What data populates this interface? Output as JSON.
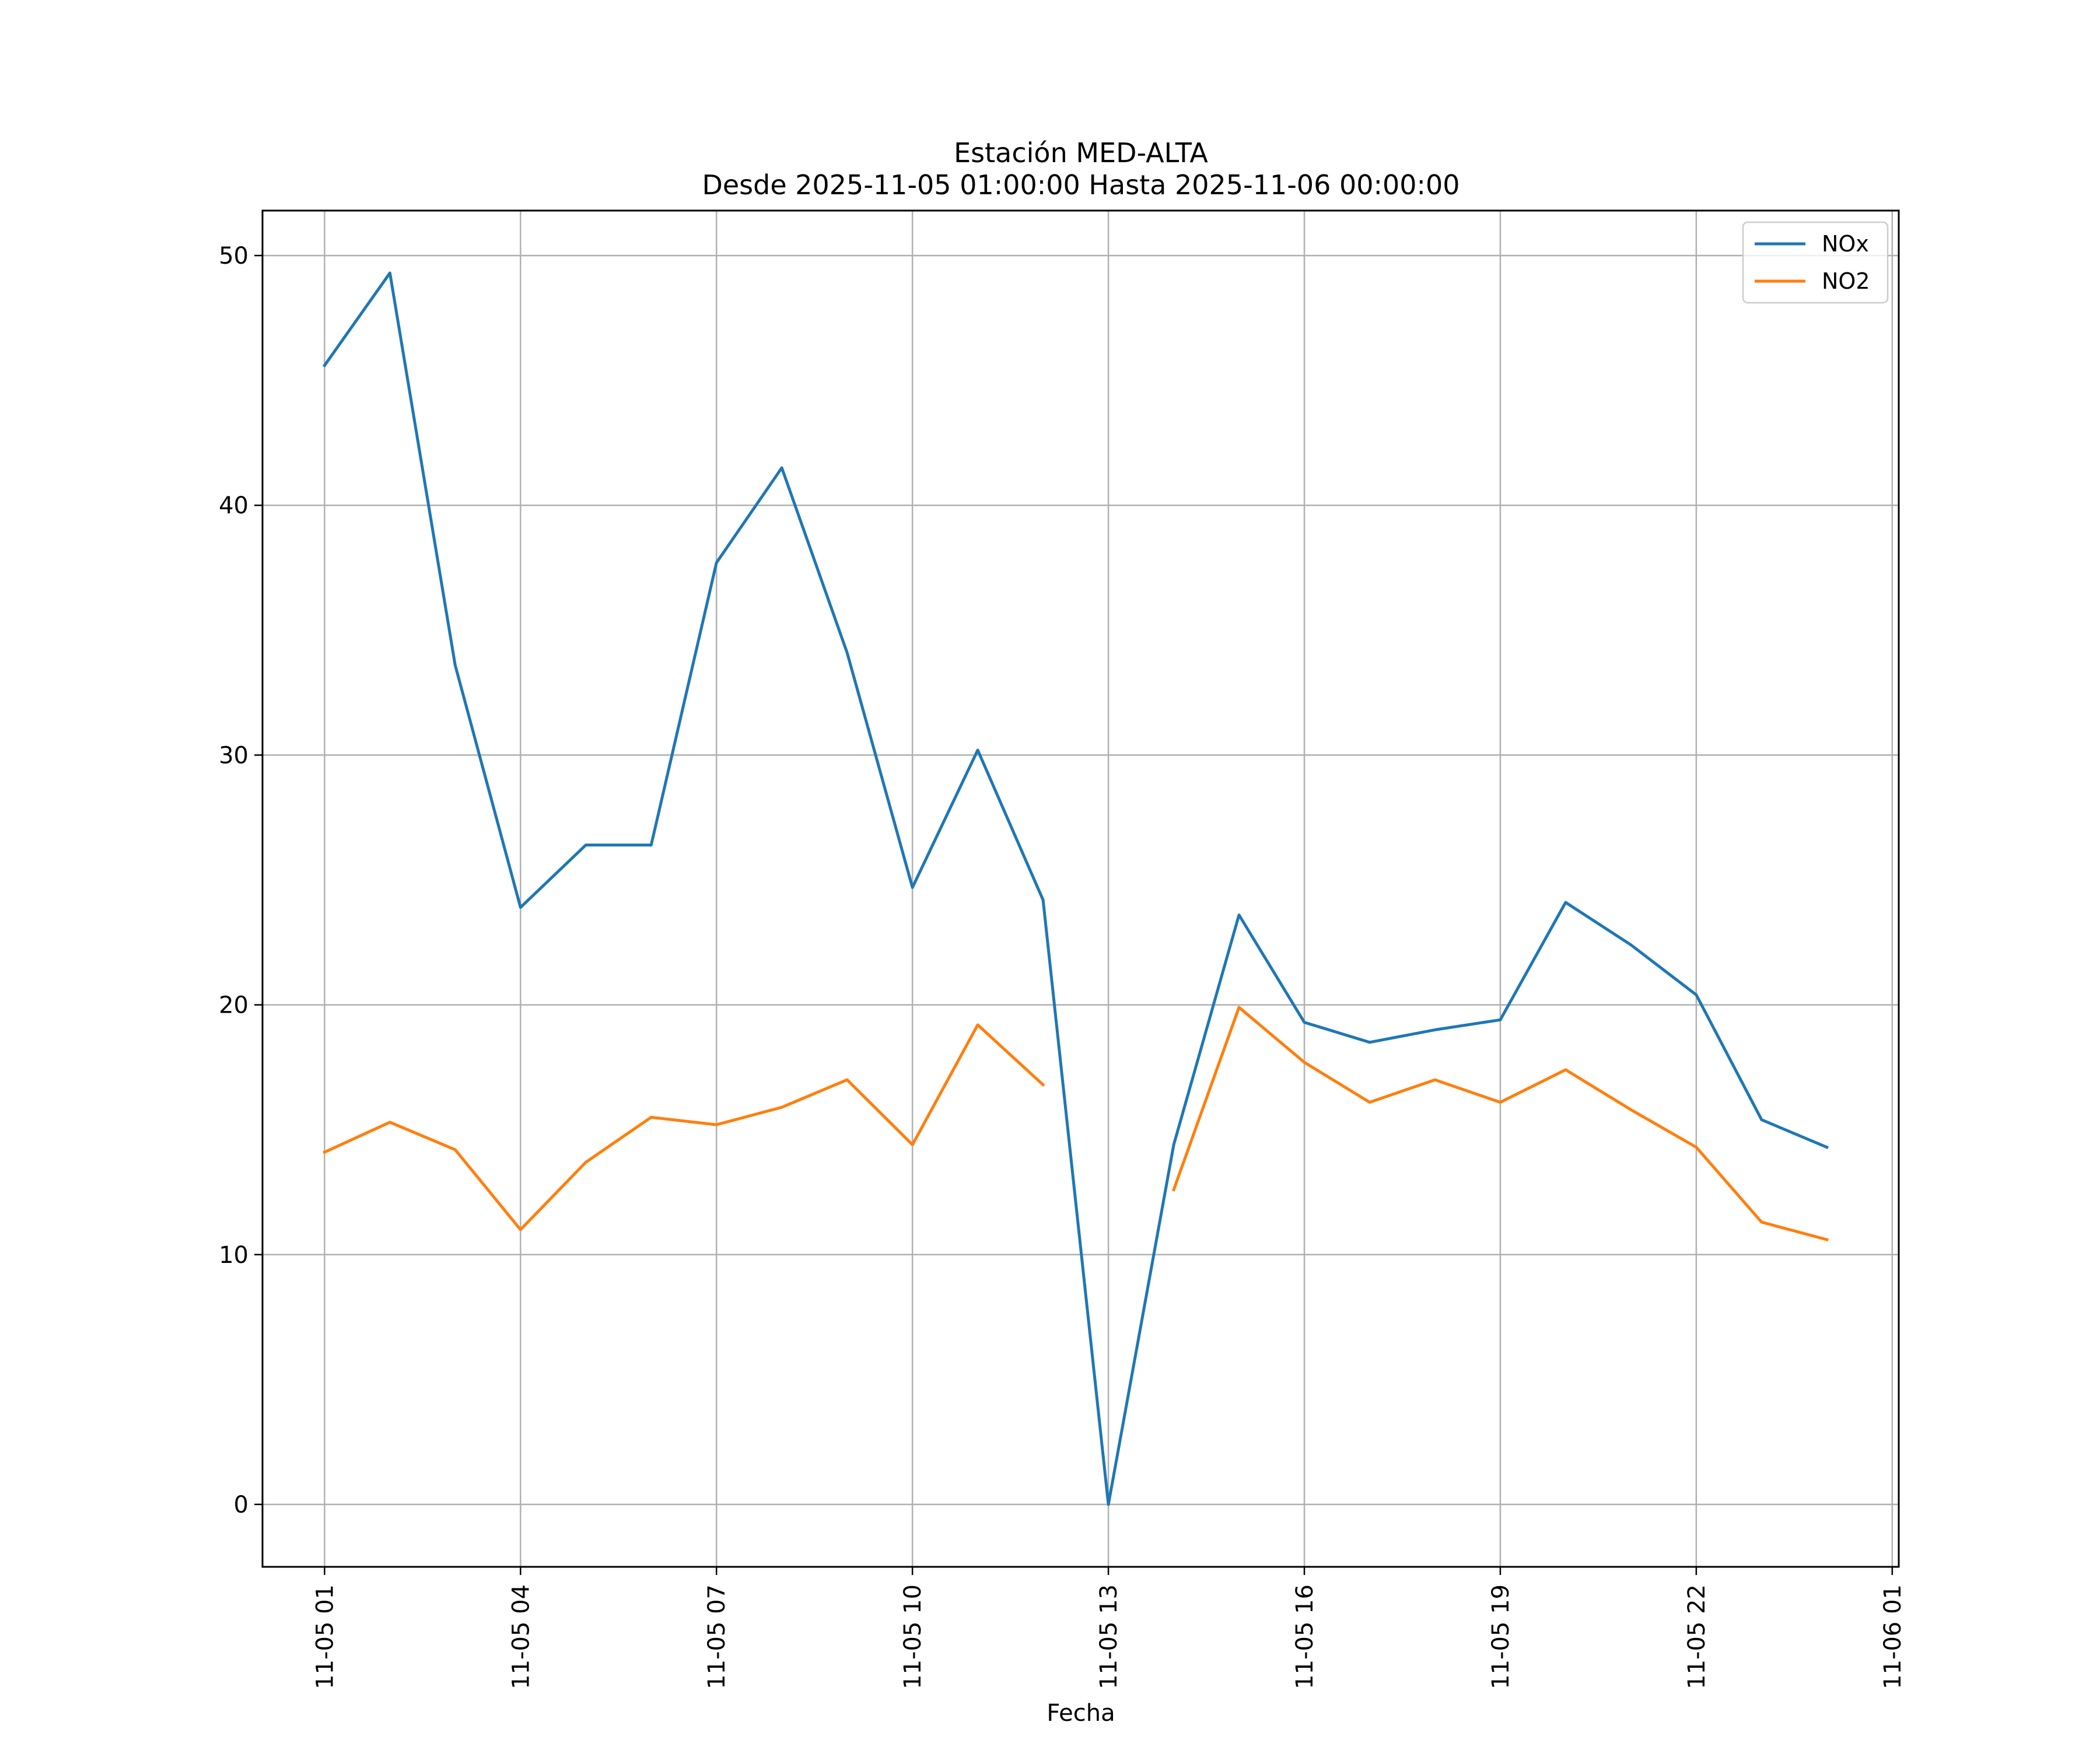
{
  "chart_data": {
    "type": "line",
    "title": "Estación MED-ALTA",
    "subtitle": "Desde 2025-11-05 01:00:00 Hasta 2025-11-06 00:00:00",
    "xlabel": "Fecha",
    "ylabel": "",
    "x": [
      "11-05 01",
      "11-05 02",
      "11-05 03",
      "11-05 04",
      "11-05 05",
      "11-05 06",
      "11-05 07",
      "11-05 08",
      "11-05 09",
      "11-05 10",
      "11-05 11",
      "11-05 12",
      "11-05 13",
      "11-05 14",
      "11-05 15",
      "11-05 16",
      "11-05 17",
      "11-05 18",
      "11-05 19",
      "11-05 20",
      "11-05 21",
      "11-05 22",
      "11-05 23",
      "11-06 00"
    ],
    "x_ticks": [
      "11-05 01",
      "11-05 04",
      "11-05 07",
      "11-05 10",
      "11-05 13",
      "11-05 16",
      "11-05 19",
      "11-05 22",
      "11-06 01"
    ],
    "y_ticks": [
      0,
      10,
      20,
      30,
      40,
      50
    ],
    "xlim_hours": [
      -0.95,
      24.1
    ],
    "ylim": [
      -2.5,
      51.8
    ],
    "grid": true,
    "legend_position": "top-right",
    "series": [
      {
        "name": "NOx",
        "color": "#1f77b4",
        "values": [
          45.6,
          49.3,
          33.6,
          23.9,
          26.4,
          26.4,
          37.7,
          41.5,
          34.1,
          24.7,
          30.2,
          24.2,
          0.0,
          14.4,
          23.6,
          19.3,
          18.5,
          19.0,
          19.4,
          24.1,
          22.4,
          20.4,
          15.4,
          14.3
        ]
      },
      {
        "name": "NO2",
        "color": "#ff7f0e",
        "values": [
          14.1,
          15.3,
          14.2,
          11.0,
          13.7,
          15.5,
          15.2,
          15.9,
          17.0,
          14.4,
          19.2,
          16.8,
          null,
          12.6,
          19.9,
          17.7,
          16.1,
          17.0,
          16.1,
          17.4,
          15.8,
          14.3,
          11.3,
          10.6
        ]
      }
    ]
  }
}
